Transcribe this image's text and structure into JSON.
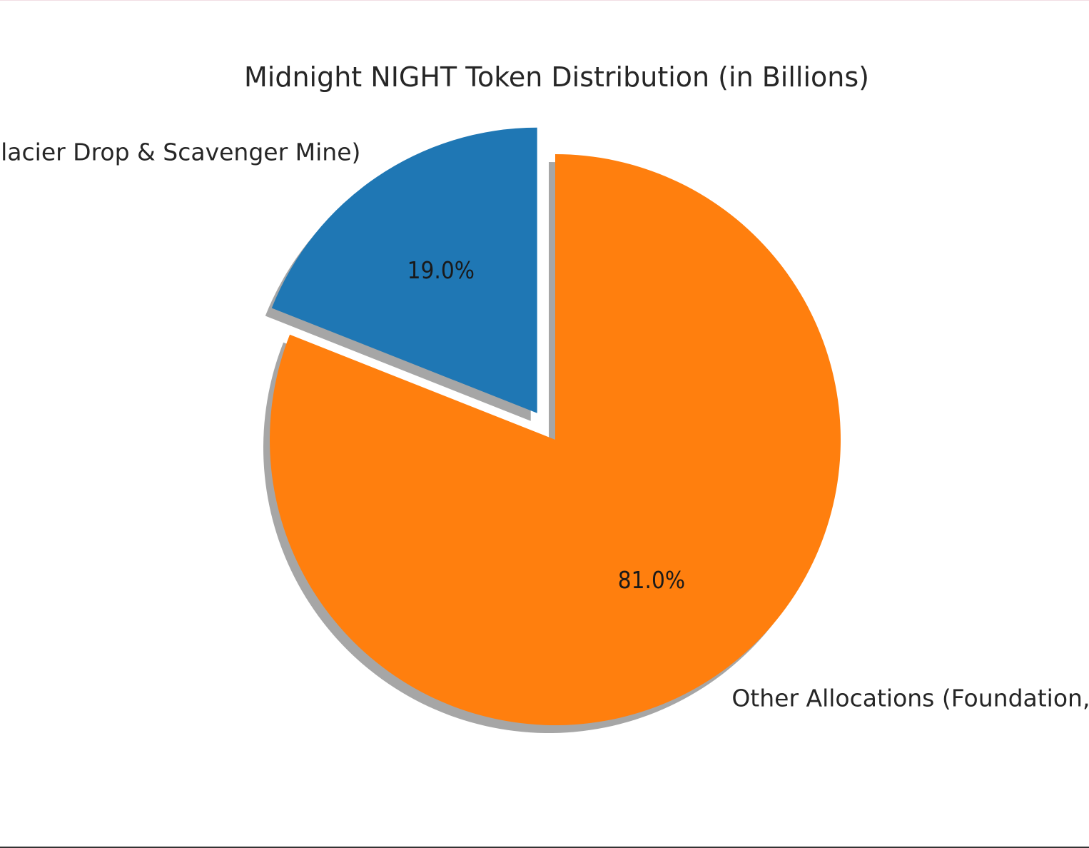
{
  "chart_data": {
    "type": "pie",
    "title": "Midnight NIGHT Token Distribution (in Billions)",
    "start_angle_deg": 90,
    "shadow": true,
    "slices": [
      {
        "label": "(Glacier Drop & Scavenger Mine)",
        "value": 19.0,
        "pct_label": "19.0%",
        "color": "#1f77b4",
        "exploded": true
      },
      {
        "label": "Other Allocations (Foundation,",
        "value": 81.0,
        "pct_label": "81.0%",
        "color": "#ff7f0e",
        "exploded": false
      }
    ]
  }
}
